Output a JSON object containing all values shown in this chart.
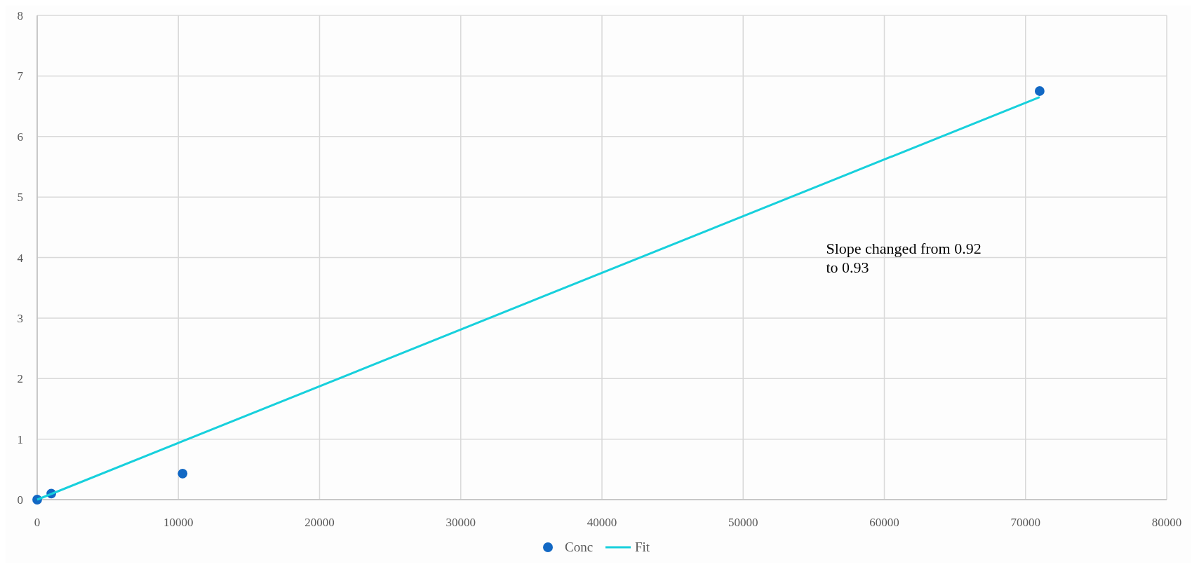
{
  "chart_data": {
    "type": "scatter",
    "xlim": [
      0,
      80000
    ],
    "xticks": [
      0,
      10000,
      20000,
      30000,
      40000,
      50000,
      60000,
      70000,
      80000
    ],
    "ylim": [
      0,
      8
    ],
    "yticks": [
      0,
      1,
      2,
      3,
      4,
      5,
      6,
      7,
      8
    ],
    "grid": true,
    "legend": "bottom",
    "series": [
      {
        "name": "Conc",
        "marker": "circle",
        "color": "#1268c4",
        "x": [
          0,
          1000,
          10300,
          71000
        ],
        "values": [
          0,
          0.1,
          0.43,
          6.75
        ]
      },
      {
        "name": "Fit",
        "type": "line",
        "color": "#17d0dc",
        "x": [
          0,
          71000
        ],
        "values": [
          0,
          6.65
        ],
        "line_style": "solid"
      }
    ],
    "annotations": [
      "Slope changed from 0.92 to 0.93"
    ]
  }
}
